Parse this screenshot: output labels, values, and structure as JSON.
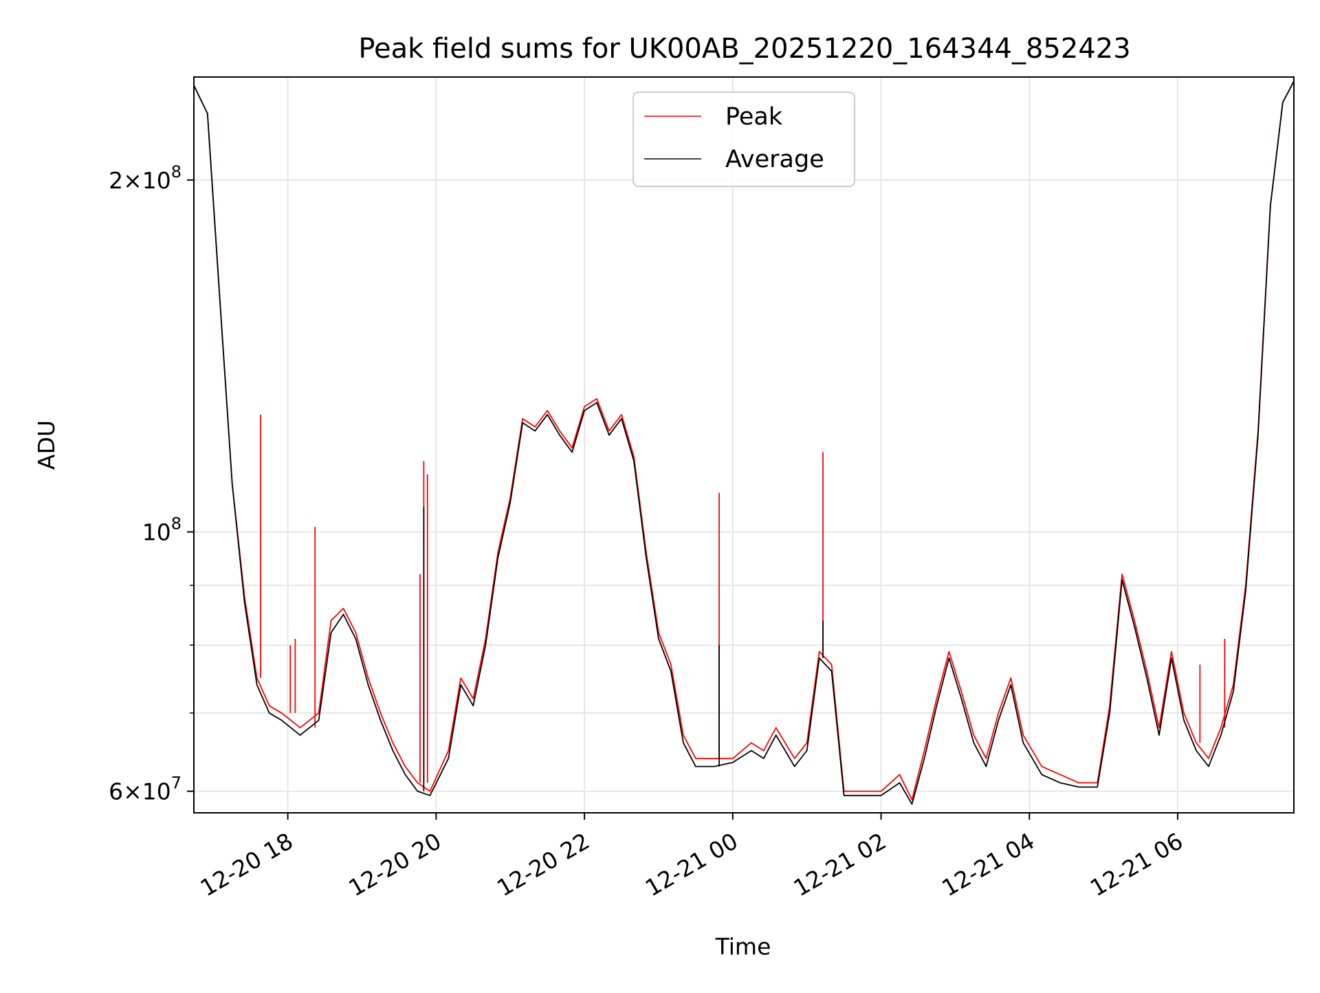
{
  "chart_data": {
    "type": "line",
    "title": "Peak field sums for UK00AB_20251220_164344_852423",
    "xlabel": "Time",
    "ylabel": "ADU",
    "yscale": "log",
    "grid": true,
    "legend_position": "upper center",
    "xlim": [
      "2025-12-20 16:44",
      "2025-12-21 07:34"
    ],
    "ylim": [
      57500000,
      245000000
    ],
    "x_ticks": [
      {
        "value": "2025-12-20 18:00",
        "label": "12-20 18"
      },
      {
        "value": "2025-12-20 20:00",
        "label": "12-20 20"
      },
      {
        "value": "2025-12-20 22:00",
        "label": "12-20 22"
      },
      {
        "value": "2025-12-21 00:00",
        "label": "12-21 00"
      },
      {
        "value": "2025-12-21 02:00",
        "label": "12-21 02"
      },
      {
        "value": "2025-12-21 04:00",
        "label": "12-21 04"
      },
      {
        "value": "2025-12-21 06:00",
        "label": "12-21 06"
      }
    ],
    "y_ticks": [
      {
        "value": 60000000,
        "base": "6",
        "exp": "7"
      },
      {
        "value": 100000000,
        "base": "",
        "exp": "8"
      },
      {
        "value": 200000000,
        "base": "2",
        "exp": "8"
      }
    ],
    "y_minor_ticks": [
      70000000,
      80000000,
      90000000
    ],
    "series": [
      {
        "name": "Peak",
        "color": "#ff0000",
        "x": [
          "2025-12-20 16:44",
          "2025-12-20 16:55",
          "2025-12-20 17:05",
          "2025-12-20 17:15",
          "2025-12-20 17:25",
          "2025-12-20 17:35",
          "2025-12-20 17:45",
          "2025-12-20 17:55",
          "2025-12-20 18:10",
          "2025-12-20 18:25",
          "2025-12-20 18:35",
          "2025-12-20 18:45",
          "2025-12-20 18:55",
          "2025-12-20 19:05",
          "2025-12-20 19:15",
          "2025-12-20 19:25",
          "2025-12-20 19:35",
          "2025-12-20 19:45",
          "2025-12-20 19:55",
          "2025-12-20 20:10",
          "2025-12-20 20:20",
          "2025-12-20 20:30",
          "2025-12-20 20:40",
          "2025-12-20 20:50",
          "2025-12-20 21:00",
          "2025-12-20 21:10",
          "2025-12-20 21:20",
          "2025-12-20 21:30",
          "2025-12-20 21:40",
          "2025-12-20 21:50",
          "2025-12-20 22:00",
          "2025-12-20 22:10",
          "2025-12-20 22:20",
          "2025-12-20 22:30",
          "2025-12-20 22:40",
          "2025-12-20 22:50",
          "2025-12-20 23:00",
          "2025-12-20 23:10",
          "2025-12-20 23:20",
          "2025-12-20 23:30",
          "2025-12-20 23:45",
          "2025-12-21 00:00",
          "2025-12-21 00:15",
          "2025-12-21 00:25",
          "2025-12-21 00:35",
          "2025-12-21 00:50",
          "2025-12-21 01:00",
          "2025-12-21 01:10",
          "2025-12-21 01:20",
          "2025-12-21 01:30",
          "2025-12-21 01:45",
          "2025-12-21 02:00",
          "2025-12-21 02:15",
          "2025-12-21 02:25",
          "2025-12-21 02:35",
          "2025-12-21 02:45",
          "2025-12-21 02:55",
          "2025-12-21 03:05",
          "2025-12-21 03:15",
          "2025-12-21 03:25",
          "2025-12-21 03:35",
          "2025-12-21 03:45",
          "2025-12-21 03:55",
          "2025-12-21 04:10",
          "2025-12-21 04:25",
          "2025-12-21 04:40",
          "2025-12-21 04:55",
          "2025-12-21 05:05",
          "2025-12-21 05:15",
          "2025-12-21 05:25",
          "2025-12-21 05:35",
          "2025-12-21 05:45",
          "2025-12-21 05:55",
          "2025-12-21 06:05",
          "2025-12-21 06:15",
          "2025-12-21 06:25",
          "2025-12-21 06:35",
          "2025-12-21 06:45",
          "2025-12-21 06:55",
          "2025-12-21 07:05",
          "2025-12-21 07:15",
          "2025-12-21 07:25",
          "2025-12-21 07:34"
        ],
        "values": [
          241000000,
          228000000,
          158000000,
          110000000,
          88000000,
          75000000,
          71000000,
          70000000,
          68000000,
          70000000,
          84000000,
          86000000,
          82000000,
          75000000,
          70000000,
          66000000,
          63000000,
          61000000,
          60000000,
          65000000,
          75000000,
          72000000,
          81000000,
          96000000,
          107000000,
          125000000,
          123000000,
          127000000,
          122000000,
          118000000,
          128000000,
          130000000,
          122000000,
          126000000,
          116000000,
          96000000,
          82000000,
          77000000,
          67000000,
          64000000,
          64000000,
          64000000,
          66000000,
          65000000,
          68000000,
          64000000,
          66000000,
          79000000,
          77000000,
          60000000,
          60000000,
          60000000,
          62000000,
          59000000,
          65000000,
          72000000,
          79000000,
          73000000,
          67000000,
          64000000,
          70000000,
          75000000,
          67000000,
          63000000,
          62000000,
          61000000,
          61000000,
          71000000,
          92000000,
          84000000,
          76000000,
          68000000,
          79000000,
          70000000,
          66000000,
          64000000,
          68000000,
          74000000,
          90000000,
          122000000,
          190000000,
          233000000,
          243000000
        ],
        "spikes": [
          {
            "x": "2025-12-20 17:38",
            "value": 126000000
          },
          {
            "x": "2025-12-20 18:02",
            "value": 80000000
          },
          {
            "x": "2025-12-20 18:06",
            "value": 81000000
          },
          {
            "x": "2025-12-20 18:22",
            "value": 101000000
          },
          {
            "x": "2025-12-20 19:47",
            "value": 92000000
          },
          {
            "x": "2025-12-20 19:50",
            "value": 115000000
          },
          {
            "x": "2025-12-20 19:53",
            "value": 112000000
          },
          {
            "x": "2025-12-20 23:49",
            "value": 108000000
          },
          {
            "x": "2025-12-21 01:13",
            "value": 117000000
          },
          {
            "x": "2025-12-21 06:18",
            "value": 77000000
          },
          {
            "x": "2025-12-21 06:38",
            "value": 81000000
          }
        ]
      },
      {
        "name": "Average",
        "color": "#000000",
        "x": [
          "2025-12-20 16:44",
          "2025-12-20 16:55",
          "2025-12-20 17:05",
          "2025-12-20 17:15",
          "2025-12-20 17:25",
          "2025-12-20 17:35",
          "2025-12-20 17:45",
          "2025-12-20 17:55",
          "2025-12-20 18:10",
          "2025-12-20 18:25",
          "2025-12-20 18:35",
          "2025-12-20 18:45",
          "2025-12-20 18:55",
          "2025-12-20 19:05",
          "2025-12-20 19:15",
          "2025-12-20 19:25",
          "2025-12-20 19:35",
          "2025-12-20 19:45",
          "2025-12-20 19:55",
          "2025-12-20 20:10",
          "2025-12-20 20:20",
          "2025-12-20 20:30",
          "2025-12-20 20:40",
          "2025-12-20 20:50",
          "2025-12-20 21:00",
          "2025-12-20 21:10",
          "2025-12-20 21:20",
          "2025-12-20 21:30",
          "2025-12-20 21:40",
          "2025-12-20 21:50",
          "2025-12-20 22:00",
          "2025-12-20 22:10",
          "2025-12-20 22:20",
          "2025-12-20 22:30",
          "2025-12-20 22:40",
          "2025-12-20 22:50",
          "2025-12-20 23:00",
          "2025-12-20 23:10",
          "2025-12-20 23:20",
          "2025-12-20 23:30",
          "2025-12-20 23:45",
          "2025-12-21 00:00",
          "2025-12-21 00:15",
          "2025-12-21 00:25",
          "2025-12-21 00:35",
          "2025-12-21 00:50",
          "2025-12-21 01:00",
          "2025-12-21 01:10",
          "2025-12-21 01:20",
          "2025-12-21 01:30",
          "2025-12-21 01:45",
          "2025-12-21 02:00",
          "2025-12-21 02:15",
          "2025-12-21 02:25",
          "2025-12-21 02:35",
          "2025-12-21 02:45",
          "2025-12-21 02:55",
          "2025-12-21 03:05",
          "2025-12-21 03:15",
          "2025-12-21 03:25",
          "2025-12-21 03:35",
          "2025-12-21 03:45",
          "2025-12-21 03:55",
          "2025-12-21 04:10",
          "2025-12-21 04:25",
          "2025-12-21 04:40",
          "2025-12-21 04:55",
          "2025-12-21 05:05",
          "2025-12-21 05:15",
          "2025-12-21 05:25",
          "2025-12-21 05:35",
          "2025-12-21 05:45",
          "2025-12-21 05:55",
          "2025-12-21 06:05",
          "2025-12-21 06:15",
          "2025-12-21 06:25",
          "2025-12-21 06:35",
          "2025-12-21 06:45",
          "2025-12-21 06:55",
          "2025-12-21 07:05",
          "2025-12-21 07:15",
          "2025-12-21 07:25",
          "2025-12-21 07:34"
        ],
        "values": [
          241000000,
          228000000,
          158000000,
          110000000,
          87000000,
          74000000,
          70000000,
          69000000,
          67000000,
          69000000,
          82000000,
          85000000,
          81000000,
          74000000,
          69000000,
          65000000,
          62000000,
          60000000,
          59500000,
          64000000,
          74000000,
          71000000,
          80000000,
          95000000,
          106000000,
          124000000,
          122000000,
          126000000,
          121000000,
          117000000,
          127000000,
          129000000,
          121000000,
          125000000,
          115000000,
          95000000,
          81000000,
          76000000,
          66000000,
          63000000,
          63000000,
          63500000,
          65000000,
          64000000,
          67000000,
          63000000,
          65000000,
          78000000,
          76000000,
          59500000,
          59500000,
          59500000,
          61000000,
          58500000,
          64000000,
          71000000,
          78000000,
          72000000,
          66000000,
          63000000,
          69000000,
          74000000,
          66000000,
          62000000,
          61000000,
          60500000,
          60500000,
          70000000,
          91000000,
          83000000,
          75000000,
          67000000,
          78000000,
          69000000,
          65000000,
          63000000,
          67000000,
          73000000,
          89000000,
          121000000,
          190000000,
          233000000,
          243000000
        ],
        "spikes": [
          {
            "x": "2025-12-20 19:50",
            "value": 105000000
          },
          {
            "x": "2025-12-20 23:49",
            "value": 80000000
          },
          {
            "x": "2025-12-21 01:13",
            "value": 84000000
          }
        ]
      }
    ]
  }
}
